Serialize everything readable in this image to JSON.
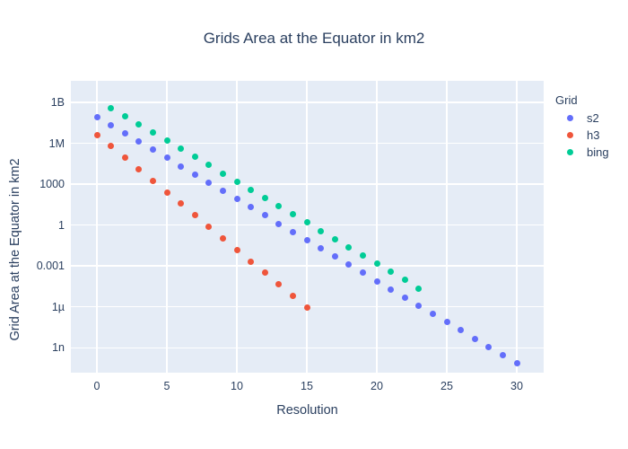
{
  "chart_data": {
    "type": "scatter",
    "title": "Grids Area at the Equator in km2",
    "xlabel": "Resolution",
    "ylabel": "Grid Area at the Equator in km2",
    "legend_title": "Grid",
    "y_scale": "log",
    "grid": true,
    "legend_position": "right",
    "plot_bg_color": "#e5ecf6",
    "text_color": "#2a3f5f",
    "x_ticks": [
      0,
      5,
      10,
      15,
      20,
      25,
      30
    ],
    "y_ticks": [
      {
        "label": "1B",
        "value": 1000000000.0
      },
      {
        "label": "1M",
        "value": 1000000.0
      },
      {
        "label": "1000",
        "value": 1000.0
      },
      {
        "label": "1",
        "value": 1
      },
      {
        "label": "0.001",
        "value": 0.001
      },
      {
        "label": "1µ",
        "value": 1e-06
      },
      {
        "label": "1n",
        "value": 1e-09
      }
    ],
    "series": [
      {
        "name": "s2",
        "color": "#636efa",
        "x": [
          0,
          1,
          2,
          3,
          4,
          5,
          6,
          7,
          8,
          9,
          10,
          11,
          12,
          13,
          14,
          15,
          16,
          17,
          18,
          19,
          20,
          21,
          22,
          23,
          24,
          25,
          26,
          27,
          28,
          29,
          30
        ],
        "y": [
          85011012.19,
          21252753.05,
          5313188.26,
          1328297.07,
          332074.27,
          83018.57,
          20754.64,
          5188.66,
          1297.17,
          324.29,
          81.07,
          20.268,
          5.067,
          1.2668,
          0.31668,
          0.079167,
          0.019792,
          0.0049479,
          0.001237,
          0.00030924,
          7.731e-05,
          1.9328e-05,
          4.8319e-06,
          1.208e-06,
          3.02e-07,
          7.5499e-08,
          1.8875e-08,
          4.7187e-09,
          1.1797e-09,
          2.9492e-10,
          7.373e-11
        ]
      },
      {
        "name": "h3",
        "color": "#ef553b",
        "x": [
          0,
          1,
          2,
          3,
          4,
          5,
          6,
          7,
          8,
          9,
          10,
          11,
          12,
          13,
          14,
          15
        ],
        "y": [
          4250546.85,
          607220.98,
          86745.85,
          12392.26,
          1770.32,
          252.9033,
          36.1291,
          5.1613,
          0.73733,
          0.105332,
          0.0150475,
          0.0021496,
          0.0003071,
          4.39e-05,
          6.3e-06,
          9e-07
        ]
      },
      {
        "name": "bing",
        "color": "#00cc96",
        "x": [
          1,
          2,
          3,
          4,
          5,
          6,
          7,
          8,
          9,
          10,
          11,
          12,
          13,
          14,
          15,
          16,
          17,
          18,
          19,
          20,
          21,
          22,
          23
        ],
        "y": [
          401501741,
          100375435,
          25093859,
          6273465,
          1568366,
          392091.5,
          98022.9,
          24505.7,
          6126.43,
          1531.61,
          382.9,
          95.725,
          23.931,
          5.9828,
          1.4957,
          0.37393,
          0.093482,
          0.023371,
          0.0058427,
          0.0014607,
          0.00036517,
          9.1292e-05,
          2.2823e-05
        ]
      }
    ]
  }
}
